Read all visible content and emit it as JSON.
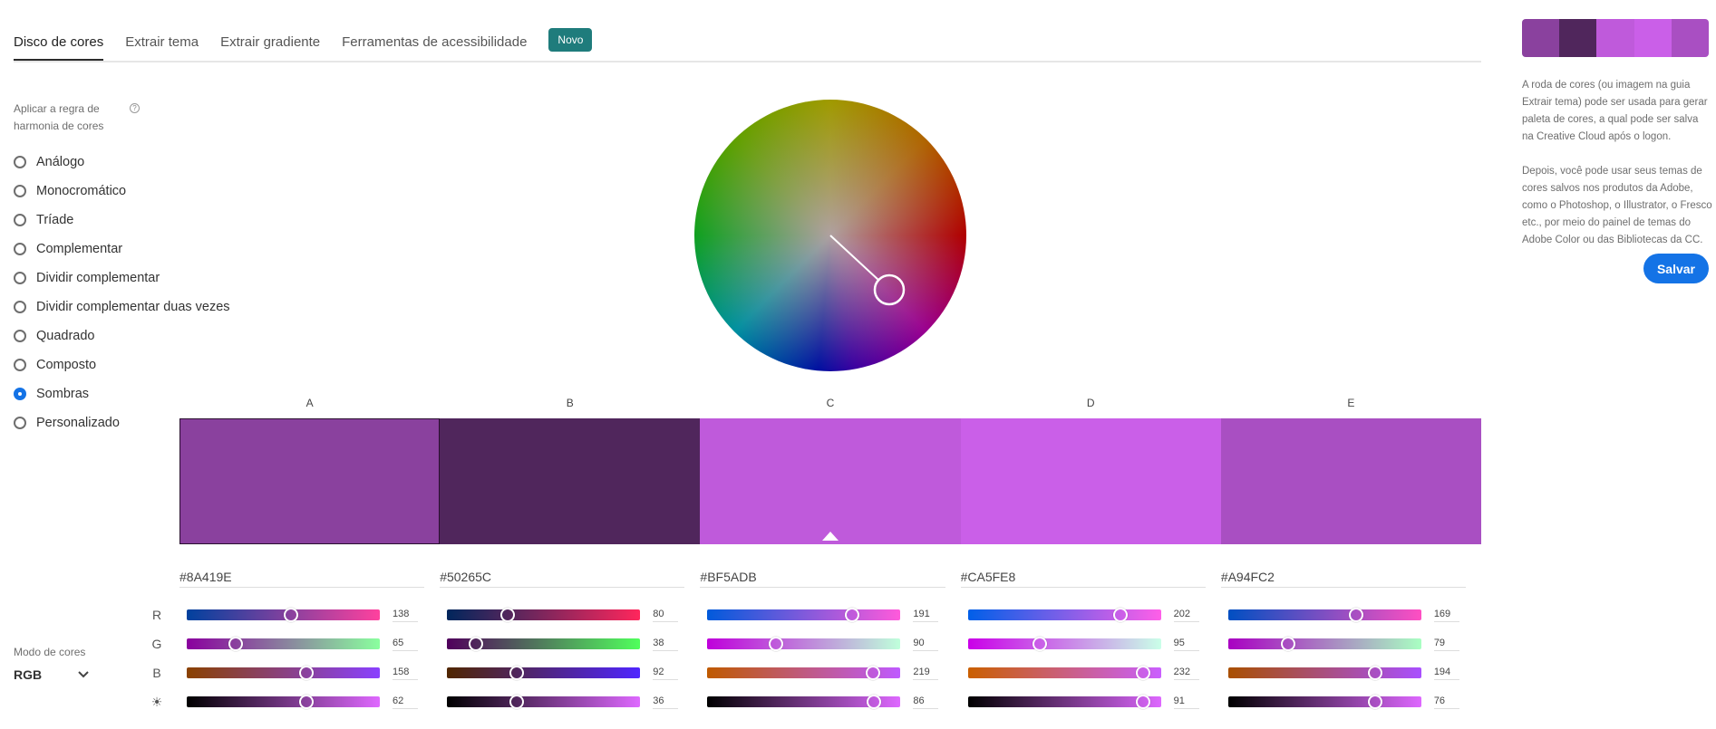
{
  "tabs": [
    {
      "label": "Disco de cores",
      "active": true
    },
    {
      "label": "Extrair tema"
    },
    {
      "label": "Extrair gradiente"
    },
    {
      "label": "Ferramentas de acessibilidade"
    }
  ],
  "badge": "Novo",
  "harmony": {
    "label": "Aplicar a regra de harmonia de cores",
    "help_icon": "?",
    "selected": "Sombras",
    "options": [
      "Análogo",
      "Monocromático",
      "Tríade",
      "Complementar",
      "Dividir complementar",
      "Dividir complementar duas vezes",
      "Quadrado",
      "Composto",
      "Sombras",
      "Personalizado"
    ]
  },
  "color_mode": {
    "label": "Modo de cores",
    "value": "RGB"
  },
  "channels": [
    "R",
    "G",
    "B",
    "☀"
  ],
  "selected_swatch": "C",
  "swatches": [
    {
      "letter": "A",
      "hex": "#8A419E",
      "r": 138,
      "g": 65,
      "b": 158,
      "brightness": 62
    },
    {
      "letter": "B",
      "hex": "#50265C",
      "r": 80,
      "g": 38,
      "b": 92,
      "brightness": 36
    },
    {
      "letter": "C",
      "hex": "#BF5ADB",
      "r": 191,
      "g": 90,
      "b": 219,
      "brightness": 86
    },
    {
      "letter": "D",
      "hex": "#CA5FE8",
      "r": 202,
      "g": 95,
      "b": 232,
      "brightness": 91
    },
    {
      "letter": "E",
      "hex": "#A94FC2",
      "r": 169,
      "g": 79,
      "b": 194,
      "brightness": 76
    }
  ],
  "info": {
    "p1": "A roda de cores (ou imagem na guia Extrair tema) pode ser usada para gerar paleta de cores, a qual pode ser salva na Creative Cloud após o logon.",
    "p2": "Depois, você pode usar seus temas de cores salvos nos produtos da Adobe, como o Photoshop, o Illustrator, o Fresco etc., por meio do painel de temas do Adobe Color ou das Bibliotecas da CC."
  },
  "save_label": "Salvar",
  "accent": "#1473e6"
}
